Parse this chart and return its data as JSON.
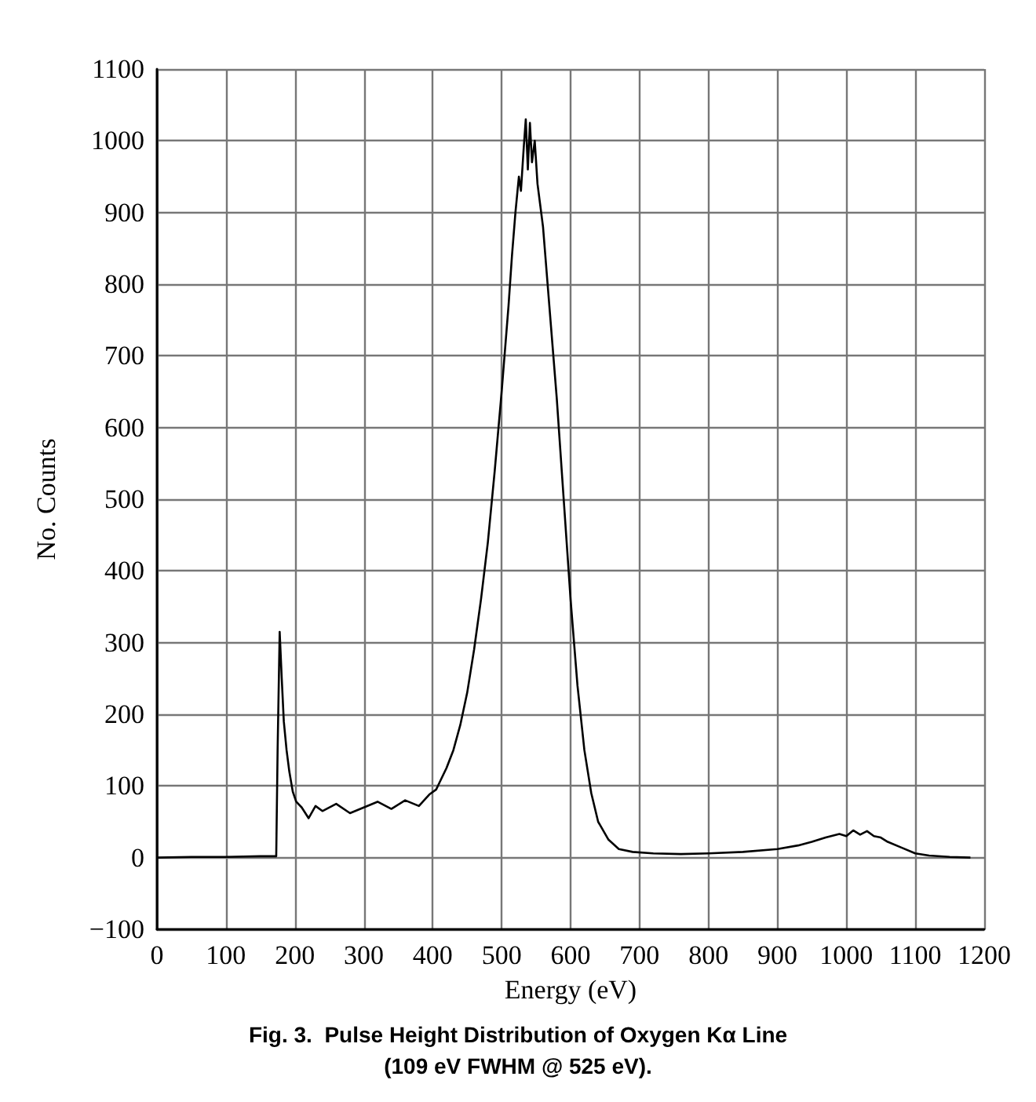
{
  "chart_data": {
    "type": "line",
    "title": "Fig. 3.  Pulse Height Distribution of Oxygen Kα Line\n(109 eV FWHM @ 525 eV).",
    "xlabel": "Energy (eV)",
    "ylabel": "No. Counts",
    "x": [
      0,
      50,
      100,
      150,
      173,
      175,
      178,
      181,
      184,
      188,
      192,
      197,
      202,
      210,
      220,
      230,
      240,
      260,
      280,
      300,
      320,
      340,
      360,
      380,
      395,
      405,
      410,
      420,
      430,
      440,
      450,
      460,
      470,
      480,
      490,
      500,
      510,
      515,
      520,
      525,
      528,
      532,
      535,
      538,
      541,
      544,
      548,
      552,
      556,
      560,
      565,
      570,
      580,
      590,
      600,
      610,
      620,
      630,
      640,
      655,
      670,
      690,
      720,
      760,
      800,
      850,
      900,
      930,
      950,
      970,
      990,
      1000,
      1010,
      1020,
      1030,
      1040,
      1050,
      1060,
      1080,
      1100,
      1120,
      1150,
      1180
    ],
    "series": [
      {
        "color": "#000000",
        "values": [
          0,
          1,
          1,
          2,
          2,
          150,
          315,
          250,
          190,
          150,
          120,
          92,
          78,
          70,
          55,
          72,
          65,
          75,
          62,
          70,
          78,
          68,
          80,
          72,
          88,
          95,
          105,
          125,
          150,
          185,
          230,
          290,
          360,
          440,
          540,
          650,
          770,
          840,
          900,
          950,
          930,
          990,
          1030,
          960,
          1025,
          970,
          1000,
          940,
          910,
          880,
          820,
          760,
          640,
          500,
          360,
          240,
          150,
          90,
          50,
          25,
          12,
          8,
          6,
          5,
          6,
          8,
          12,
          17,
          22,
          28,
          33,
          30,
          38,
          32,
          37,
          30,
          28,
          22,
          14,
          6,
          3,
          1,
          0
        ]
      }
    ],
    "xlim": [
      0,
      1200
    ],
    "xticks": [
      0,
      100,
      200,
      300,
      400,
      500,
      600,
      700,
      800,
      900,
      1000,
      1100,
      1200
    ],
    "ylim": [
      -100,
      1100
    ],
    "yticks": [
      {
        "value": -100,
        "label": "−100"
      },
      0,
      100,
      200,
      300,
      400,
      500,
      600,
      700,
      800,
      900,
      1000,
      1100
    ],
    "grid": true,
    "marker": "none",
    "line_style": "solid"
  }
}
